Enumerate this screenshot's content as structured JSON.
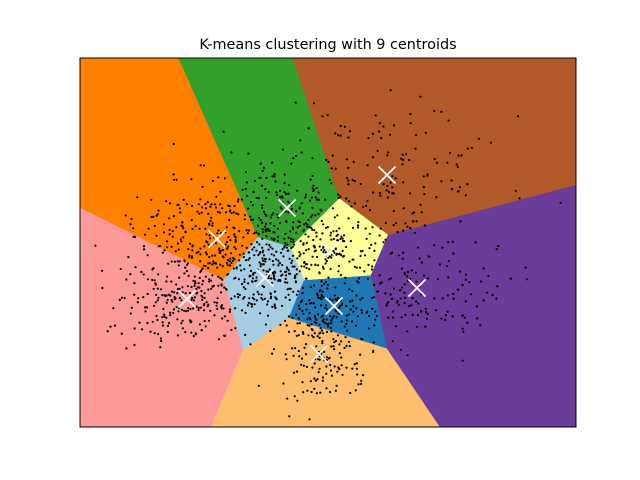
{
  "chart_data": {
    "type": "scatter",
    "title": "K-means clustering with 9 centroids",
    "xlabel": "",
    "ylabel": "",
    "xlim": [
      0,
      496
    ],
    "ylim": [
      0,
      369
    ],
    "y_inverted": true,
    "ticks_visible": false,
    "grid": false,
    "legend": "none",
    "centroid_marker": "x",
    "centroid_color": "#ffffff",
    "point_color": "#000000",
    "clusters": [
      {
        "color": "#ff7f00",
        "centroid": [
          137,
          181
        ],
        "spread": [
          42,
          28
        ],
        "count": 300
      },
      {
        "color": "#33a02c",
        "centroid": [
          207,
          150
        ],
        "spread": [
          28,
          30
        ],
        "count": 150
      },
      {
        "color": "#b15928",
        "centroid": [
          307,
          117
        ],
        "spread": [
          55,
          35
        ],
        "count": 150
      },
      {
        "color": "#ffff99",
        "centroid": [
          250,
          193
        ],
        "spread": [
          26,
          18
        ],
        "count": 110
      },
      {
        "color": "#a6cee3",
        "centroid": [
          185,
          220
        ],
        "spread": [
          24,
          20
        ],
        "count": 160
      },
      {
        "color": "#fb9a99",
        "centroid": [
          107,
          241
        ],
        "spread": [
          38,
          22
        ],
        "count": 220
      },
      {
        "color": "#6a3d9a",
        "centroid": [
          337,
          230
        ],
        "spread": [
          40,
          28
        ],
        "count": 150
      },
      {
        "color": "#1f78b4",
        "centroid": [
          254,
          248
        ],
        "spread": [
          24,
          20
        ],
        "count": 110
      },
      {
        "color": "#fdbf6f",
        "centroid": [
          239,
          296
        ],
        "spread": [
          20,
          25
        ],
        "count": 150
      }
    ]
  }
}
